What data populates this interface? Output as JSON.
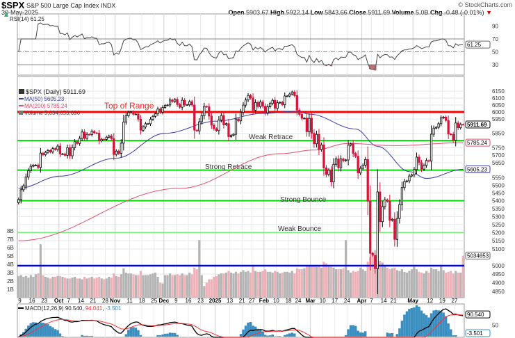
{
  "header": {
    "ticker": "$SPX",
    "name": "S&P 500 Large Cap Index",
    "exchange": "INDX",
    "date": "30-May-2025",
    "copyright": "© StockCharts.com",
    "open_label": "Open",
    "open": "5903.67",
    "high_label": "High",
    "high": "5922.14",
    "low_label": "Low",
    "low": "5843.66",
    "close_label": "Close",
    "close": "5911.69",
    "volume_label": "Volume",
    "volume": "5.0B",
    "chg_label": "Chg",
    "chg": "-0.48 (-0.01%)",
    "chg_icon": "down-triangle-icon"
  },
  "colors": {
    "up_candle": "#000000",
    "down_candle": "#d6143a",
    "ma50": "#3a3aa0",
    "ma200": "#e0506e",
    "vol_up": "#b4b4b4",
    "vol_down": "#eeb1b8",
    "top_of_range": "#ff0000",
    "retrace": "#00dd00",
    "weak_bounce": "#66ee66",
    "level_5000": "#0000ee",
    "macd": "#000000",
    "signal": "#ff3030",
    "histogram": "#3a8fc0"
  },
  "chart_data": {
    "type": "candlestick",
    "scale": "log",
    "x_start": "2024-09-06",
    "x_end": "2025-05-30",
    "ylim": [
      4830,
      6170
    ],
    "grid": true,
    "legend": {
      "price": "$SPX (Daily) 5911.69",
      "ma50": "MA(50) 5605.23",
      "ma200": "MA(200) 5785.24",
      "volume": "Volume 5,034,653,696"
    },
    "price_ticks": [
      6150,
      6100,
      6050,
      6000,
      5950,
      5850,
      5750,
      5700,
      5650,
      5550,
      5500,
      5450,
      5400,
      5350,
      5300,
      5250,
      5200,
      5150,
      5100,
      5000,
      4950,
      4900,
      4850
    ],
    "volume_ticks": [
      "8B",
      "7B",
      "6B",
      "5B",
      "4B",
      "3B",
      "2B",
      "1B"
    ],
    "x_ticks": [
      {
        "label": "9",
        "date": "2024-09-09"
      },
      {
        "label": "16",
        "date": "2024-09-16"
      },
      {
        "label": "23",
        "date": "2024-09-23"
      },
      {
        "label": "Oct",
        "date": "2024-10-01",
        "major": true
      },
      {
        "label": "7",
        "date": "2024-10-07"
      },
      {
        "label": "14",
        "date": "2024-10-14"
      },
      {
        "label": "21",
        "date": "2024-10-21"
      },
      {
        "label": "28",
        "date": "2024-10-28"
      },
      {
        "label": "Nov",
        "date": "2024-11-01",
        "major": true
      },
      {
        "label": "11",
        "date": "2024-11-11"
      },
      {
        "label": "18",
        "date": "2024-11-18"
      },
      {
        "label": "25",
        "date": "2024-11-25"
      },
      {
        "label": "Dec",
        "date": "2024-12-02",
        "major": true
      },
      {
        "label": "9",
        "date": "2024-12-09"
      },
      {
        "label": "16",
        "date": "2024-12-16"
      },
      {
        "label": "23",
        "date": "2024-12-23"
      },
      {
        "label": "2025",
        "date": "2025-01-02",
        "major": true
      },
      {
        "label": "13",
        "date": "2025-01-13"
      },
      {
        "label": "21",
        "date": "2025-01-21"
      },
      {
        "label": "27",
        "date": "2025-01-27"
      },
      {
        "label": "Feb",
        "date": "2025-02-03",
        "major": true
      },
      {
        "label": "10",
        "date": "2025-02-10"
      },
      {
        "label": "18",
        "date": "2025-02-18"
      },
      {
        "label": "24",
        "date": "2025-02-24"
      },
      {
        "label": "Mar",
        "date": "2025-03-03",
        "major": true
      },
      {
        "label": "10",
        "date": "2025-03-10"
      },
      {
        "label": "17",
        "date": "2025-03-17"
      },
      {
        "label": "24",
        "date": "2025-03-24"
      },
      {
        "label": "Apr",
        "date": "2025-04-01",
        "major": true
      },
      {
        "label": "7",
        "date": "2025-04-07"
      },
      {
        "label": "14",
        "date": "2025-04-14"
      },
      {
        "label": "21",
        "date": "2025-04-21"
      },
      {
        "label": "May",
        "date": "2025-05-01",
        "major": true
      },
      {
        "label": "12",
        "date": "2025-05-12"
      },
      {
        "label": "19",
        "date": "2025-05-19"
      },
      {
        "label": "27",
        "date": "2025-05-27"
      }
    ],
    "closes": [
      5408,
      5471,
      5496,
      5554,
      5596,
      5626,
      5633,
      5634,
      5618,
      5714,
      5703,
      5719,
      5732,
      5722,
      5745,
      5738,
      5762,
      5709,
      5709,
      5699,
      5751,
      5696,
      5751,
      5792,
      5780,
      5815,
      5859,
      5815,
      5843,
      5841,
      5864,
      5853,
      5851,
      5797,
      5809,
      5808,
      5823,
      5832,
      5813,
      5705,
      5728,
      5712,
      5782,
      5929,
      5973,
      5996,
      6001,
      5984,
      5985,
      5949,
      5871,
      5894,
      5917,
      5917,
      5949,
      5969,
      5987,
      6021,
      5999,
      6032,
      6047,
      6050,
      6086,
      6075,
      6090,
      6053,
      6034,
      6084,
      6051,
      6051,
      6074,
      6050,
      5872,
      5867,
      5931,
      5974,
      6040,
      6037,
      5971,
      5907,
      5882,
      5869,
      5942,
      5975,
      5909,
      5918,
      5827,
      5836,
      5843,
      5950,
      5937,
      5997,
      6049,
      6086,
      6119,
      6101,
      6012,
      6068,
      6039,
      6071,
      6041,
      5994,
      6037,
      6061,
      6084,
      6026,
      6066,
      6069,
      6052,
      6115,
      6115,
      6129,
      6144,
      6118,
      6013,
      5983,
      5955,
      5956,
      5861,
      5955,
      5850,
      5778,
      5843,
      5739,
      5770,
      5615,
      5572,
      5599,
      5522,
      5639,
      5675,
      5615,
      5675,
      5663,
      5668,
      5768,
      5777,
      5712,
      5693,
      5581,
      5612,
      5633,
      5671,
      5397,
      5074,
      5062,
      4982,
      5457,
      5268,
      5363,
      5406,
      5397,
      5276,
      5283,
      5158,
      5288,
      5376,
      5485,
      5525,
      5529,
      5561,
      5569,
      5604,
      5687,
      5650,
      5607,
      5631,
      5664,
      5660,
      5844,
      5886,
      5892,
      5917,
      5958,
      5964,
      5940,
      5845,
      5842,
      5802,
      5922,
      5889,
      5912,
      5911.69
    ],
    "volume_billions": [
      2.6,
      2.7,
      2.5,
      2.6,
      2.4,
      2.7,
      2.5,
      2.8,
      2.9,
      6.4,
      2.7,
      2.5,
      2.4,
      2.3,
      2.5,
      2.5,
      2.6,
      2.6,
      2.5,
      2.4,
      2.3,
      2.3,
      2.4,
      2.5,
      2.3,
      2.3,
      2.2,
      2.5,
      2.3,
      2.4,
      2.5,
      2.3,
      2.4,
      2.5,
      2.3,
      2.2,
      2.3,
      2.5,
      2.4,
      2.9,
      2.6,
      2.5,
      2.8,
      3.5,
      3.0,
      2.9,
      2.9,
      2.8,
      2.7,
      2.7,
      3.2,
      2.7,
      2.7,
      2.7,
      2.8,
      2.9,
      3.0,
      2.5,
      1.8,
      1.7,
      2.7,
      2.7,
      2.9,
      2.7,
      2.7,
      2.8,
      2.7,
      2.9,
      2.7,
      2.7,
      3.0,
      2.8,
      3.6,
      3.4,
      6.9,
      2.7,
      1.4,
      1.8,
      2.2,
      2.2,
      2.5,
      2.6,
      2.8,
      2.9,
      2.9,
      3.0,
      3.2,
      3.0,
      2.9,
      3.1,
      2.9,
      3.1,
      3.3,
      3.1,
      3.2,
      3.0,
      3.8,
      3.2,
      3.1,
      3.1,
      3.2,
      3.4,
      3.1,
      3.1,
      3.0,
      3.2,
      3.1,
      2.9,
      3.0,
      3.1,
      3.1,
      3.0,
      3.2,
      2.9,
      3.5,
      3.4,
      3.4,
      3.5,
      3.8,
      3.9,
      3.8,
      3.9,
      3.7,
      3.8,
      3.6,
      4.3,
      4.1,
      3.8,
      3.7,
      3.6,
      3.4,
      3.4,
      3.4,
      3.5,
      6.9,
      3.3,
      3.0,
      3.2,
      3.1,
      3.2,
      3.6,
      3.4,
      3.2,
      4.3,
      4.9,
      5.3,
      4.8,
      5.1,
      4.4,
      4.2,
      3.9,
      3.6,
      3.4,
      3.5,
      3.6,
      3.3,
      3.2,
      3.4,
      3.1,
      3.0,
      3.2,
      3.4,
      3.7,
      3.4,
      3.1,
      3.0,
      2.9,
      3.2,
      3.0,
      3.6,
      3.4,
      3.4,
      3.2,
      3.8,
      3.3,
      3.0,
      3.1,
      3.2,
      2.9,
      3.2,
      3.0,
      3.0,
      5.03
    ],
    "ma50": [
      {
        "date": "2024-09-06",
        "value": 5480
      },
      {
        "date": "2024-10-01",
        "value": 5560
      },
      {
        "date": "2024-11-01",
        "value": 5680
      },
      {
        "date": "2024-12-02",
        "value": 5850
      },
      {
        "date": "2025-01-02",
        "value": 5935
      },
      {
        "date": "2025-01-31",
        "value": 5990
      },
      {
        "date": "2025-02-21",
        "value": 6005
      },
      {
        "date": "2025-02-28",
        "value": 5985
      },
      {
        "date": "2025-03-27",
        "value": 5880
      },
      {
        "date": "2025-04-09",
        "value": 5760
      },
      {
        "date": "2025-04-29",
        "value": 5590
      },
      {
        "date": "2025-05-08",
        "value": 5545
      },
      {
        "date": "2025-05-30",
        "value": 5605.23
      }
    ],
    "ma200": [
      {
        "date": "2024-09-06",
        "value": 5150
      },
      {
        "date": "2024-12-10",
        "value": 5480
      },
      {
        "date": "2025-02-11",
        "value": 5710
      },
      {
        "date": "2025-03-04",
        "value": 5735
      },
      {
        "date": "2025-03-24",
        "value": 5780
      },
      {
        "date": "2025-04-21",
        "value": 5765
      },
      {
        "date": "2025-05-30",
        "value": 5785.24
      }
    ],
    "levels": [
      {
        "label": "Top of Range",
        "value": 6000,
        "color": "#ff0000"
      },
      {
        "label": "Weak Retrace",
        "value": 5800,
        "color": "#00dd00"
      },
      {
        "label": "Strong Retrace",
        "value": 5600,
        "color": "#00dd00"
      },
      {
        "label": "Strong Bounce",
        "value": 5400,
        "color": "#00dd00"
      },
      {
        "label": "Weak Bounce",
        "value": 5200,
        "color": "#77ee77"
      },
      {
        "label": "",
        "value": 5000,
        "color": "#0000ee"
      }
    ],
    "last_value_tags": {
      "close": "5911.69",
      "ma200": "5785.24",
      "ma50": "5605.23",
      "volume": "5034653"
    },
    "rsi": {
      "label": "RSI(14) 61.25",
      "ticks": [
        90,
        70,
        50,
        30
      ],
      "last": "61.25",
      "overbought": 70,
      "oversold": 30
    },
    "macd": {
      "label": "MACD(12,26,9)",
      "macd": "90.540",
      "signal": "94.041",
      "histogram": "-3.501",
      "ticks": [
        50
      ],
      "last": "90.540",
      "last_hist": "-3.501"
    }
  }
}
